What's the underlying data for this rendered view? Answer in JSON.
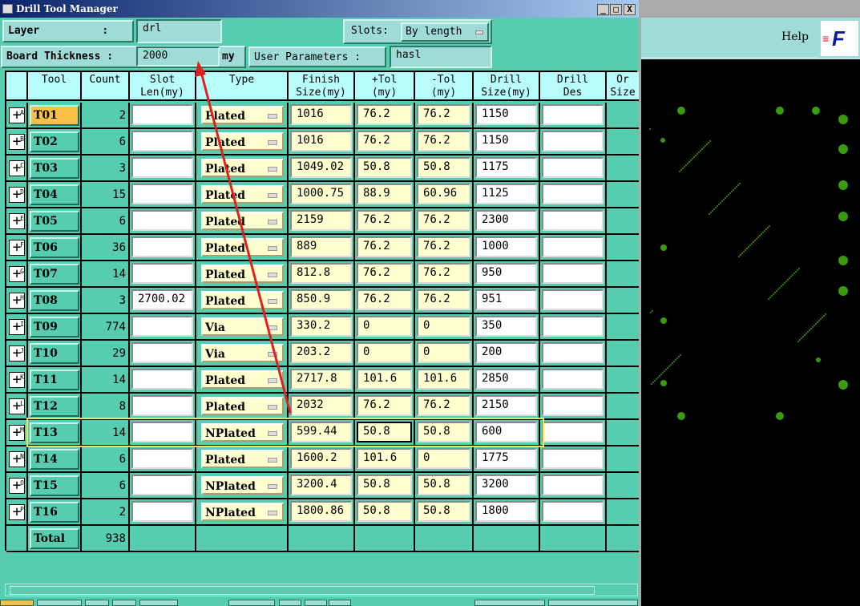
{
  "window": {
    "title": "Drill Tool Manager",
    "minimize": "_",
    "maximize": "□",
    "close": "X"
  },
  "form": {
    "layer_label": "Layer          :",
    "layer_value": "drl",
    "slots_label": "Slots:",
    "slots_value": "By length",
    "thickness_label": "Board Thickness :",
    "thickness_value": "2000",
    "thickness_unit": "my",
    "user_params_label": "User Parameters :",
    "user_params_value": "hasl"
  },
  "columns": [
    "",
    "Tool",
    "Count",
    "Slot\nLen(my)",
    "Type",
    "Finish\nSize(my)",
    "+Tol\n(my)",
    "-Tol\n(my)",
    "Drill\nSize(my)",
    "Drill\nDes",
    "Or\nSize"
  ],
  "rows": [
    {
      "icon": "A",
      "tool": "T01",
      "count": "2",
      "slot": "",
      "type": "Plated",
      "finish": "1016",
      "ptol": "76.2",
      "mtol": "76.2",
      "drill": "1150",
      "des": ""
    },
    {
      "icon": "B",
      "tool": "T02",
      "count": "6",
      "slot": "",
      "type": "Plated",
      "finish": "1016",
      "ptol": "76.2",
      "mtol": "76.2",
      "drill": "1150",
      "des": ""
    },
    {
      "icon": "C",
      "tool": "T03",
      "count": "3",
      "slot": "",
      "type": "Plated",
      "finish": "1049.02",
      "ptol": "50.8",
      "mtol": "50.8",
      "drill": "1175",
      "des": ""
    },
    {
      "icon": "D",
      "tool": "T04",
      "count": "15",
      "slot": "",
      "type": "Plated",
      "finish": "1000.75",
      "ptol": "88.9",
      "mtol": "60.96",
      "drill": "1125",
      "des": ""
    },
    {
      "icon": "E",
      "tool": "T05",
      "count": "6",
      "slot": "",
      "type": "Plated",
      "finish": "2159",
      "ptol": "76.2",
      "mtol": "76.2",
      "drill": "2300",
      "des": ""
    },
    {
      "icon": "F",
      "tool": "T06",
      "count": "36",
      "slot": "",
      "type": "Plated",
      "finish": "889",
      "ptol": "76.2",
      "mtol": "76.2",
      "drill": "1000",
      "des": ""
    },
    {
      "icon": "G",
      "tool": "T07",
      "count": "14",
      "slot": "",
      "type": "Plated",
      "finish": "812.8",
      "ptol": "76.2",
      "mtol": "76.2",
      "drill": "950",
      "des": ""
    },
    {
      "icon": "H",
      "tool": "T08",
      "count": "3",
      "slot": "2700.02",
      "type": "Plated",
      "finish": "850.9",
      "ptol": "76.2",
      "mtol": "76.2",
      "drill": "951",
      "des": ""
    },
    {
      "icon": "I",
      "tool": "T09",
      "count": "774",
      "slot": "",
      "type": "Via",
      "finish": "330.2",
      "ptol": "0",
      "mtol": "0",
      "drill": "350",
      "des": ""
    },
    {
      "icon": "J",
      "tool": "T10",
      "count": "29",
      "slot": "",
      "type": "Via",
      "finish": "203.2",
      "ptol": "0",
      "mtol": "0",
      "drill": "200",
      "des": ""
    },
    {
      "icon": "K",
      "tool": "T11",
      "count": "14",
      "slot": "",
      "type": "Plated",
      "finish": "2717.8",
      "ptol": "101.6",
      "mtol": "101.6",
      "drill": "2850",
      "des": ""
    },
    {
      "icon": "L",
      "tool": "T12",
      "count": "8",
      "slot": "",
      "type": "Plated",
      "finish": "2032",
      "ptol": "76.2",
      "mtol": "76.2",
      "drill": "2150",
      "des": ""
    },
    {
      "icon": "M",
      "tool": "T13",
      "count": "14",
      "slot": "",
      "type": "NPlated",
      "finish": "599.44",
      "ptol": "50.8",
      "mtol": "50.8",
      "drill": "600",
      "des": ""
    },
    {
      "icon": "N",
      "tool": "T14",
      "count": "6",
      "slot": "",
      "type": "Plated",
      "finish": "1600.2",
      "ptol": "101.6",
      "mtol": "0",
      "drill": "1775",
      "des": ""
    },
    {
      "icon": "O",
      "tool": "T15",
      "count": "6",
      "slot": "",
      "type": "NPlated",
      "finish": "3200.4",
      "ptol": "50.8",
      "mtol": "50.8",
      "drill": "3200",
      "des": ""
    },
    {
      "icon": "P",
      "tool": "T16",
      "count": "2",
      "slot": "",
      "type": "NPlated",
      "finish": "1800.86",
      "ptol": "50.8",
      "mtol": "50.8",
      "drill": "1800",
      "des": ""
    }
  ],
  "total": {
    "label": "Total",
    "count": "938"
  },
  "selected_tool": "T01",
  "highlighted_row": "T13",
  "right_panel": {
    "help": "Help",
    "logo": "F"
  },
  "colors": {
    "panel": "#55cdae",
    "header": "#b8fcfc",
    "selected": "#f8c048",
    "highlight": "#f2e64a",
    "arrow": "#e02020",
    "pads": "#3a9a10"
  }
}
